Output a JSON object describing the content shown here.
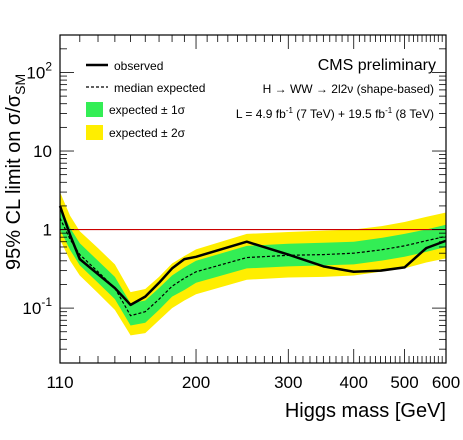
{
  "chart_data": {
    "type": "line",
    "xscale": "log",
    "yscale": "log",
    "xlim": [
      110,
      600
    ],
    "ylim": [
      0.02,
      300
    ],
    "ylabel": "95% CL limit on σ/σ",
    "ylabel_sub": "SM",
    "xlabel": "Higgs mass [GeV]",
    "x_ticklabels": [
      {
        "value": 110,
        "label": "110"
      },
      {
        "value": 200,
        "label": "200"
      },
      {
        "value": 300,
        "label": "300"
      },
      {
        "value": 400,
        "label": "400"
      },
      {
        "value": 500,
        "label": "500"
      },
      {
        "value": 600,
        "label": "600"
      }
    ],
    "y_ticklabels": [
      {
        "value": 0.1,
        "base": "10",
        "exp": "-1"
      },
      {
        "value": 1,
        "base": "1",
        "exp": ""
      },
      {
        "value": 10,
        "base": "10",
        "exp": ""
      },
      {
        "value": 100,
        "base": "10",
        "exp": "2"
      }
    ],
    "reference_line": {
      "y": 1,
      "color": "#cc0000"
    },
    "annotations": {
      "experiment": "CMS preliminary",
      "process": "H → WW → 2l2ν (shape-based)",
      "lumi": {
        "prefix": "L = 4.9 fb",
        "sup1": "-1",
        "middle": " (7 TeV) + 19.5 fb",
        "sup2": "-1",
        "suffix": " (8 TeV)"
      }
    },
    "legend": {
      "position": "top-left",
      "entries": [
        {
          "label": "observed",
          "style": "solid-line",
          "color": "#000000"
        },
        {
          "label": "median expected",
          "style": "dashed-line",
          "color": "#000000"
        },
        {
          "label": "expected ± 1σ",
          "style": "band",
          "color": "#33ee55"
        },
        {
          "label": "expected ± 2σ",
          "style": "band",
          "color": "#ffee00"
        }
      ]
    },
    "series": [
      {
        "name": "observed",
        "style": "solid",
        "color": "#000000",
        "x": [
          110,
          115,
          120,
          130,
          140,
          150,
          160,
          170,
          180,
          190,
          200,
          250,
          300,
          350,
          400,
          450,
          500,
          550,
          600
        ],
        "y": [
          2.0,
          0.85,
          0.42,
          0.27,
          0.18,
          0.11,
          0.14,
          0.21,
          0.32,
          0.42,
          0.45,
          0.7,
          0.48,
          0.34,
          0.29,
          0.3,
          0.33,
          0.58,
          0.72
        ]
      },
      {
        "name": "median expected",
        "style": "dashed",
        "color": "#000000",
        "x": [
          110,
          115,
          120,
          130,
          140,
          150,
          160,
          170,
          180,
          190,
          200,
          250,
          300,
          350,
          400,
          450,
          500,
          550,
          600
        ],
        "y": [
          1.4,
          0.75,
          0.48,
          0.29,
          0.18,
          0.08,
          0.09,
          0.13,
          0.19,
          0.24,
          0.29,
          0.44,
          0.47,
          0.48,
          0.5,
          0.55,
          0.62,
          0.72,
          0.82
        ]
      },
      {
        "name": "expected ± 1σ",
        "type": "band",
        "color": "#33ee55",
        "x": [
          110,
          115,
          120,
          130,
          140,
          150,
          160,
          170,
          180,
          190,
          200,
          250,
          300,
          350,
          400,
          450,
          500,
          550,
          600
        ],
        "low": [
          1.0,
          0.55,
          0.35,
          0.21,
          0.13,
          0.06,
          0.065,
          0.095,
          0.14,
          0.17,
          0.21,
          0.32,
          0.34,
          0.35,
          0.36,
          0.4,
          0.45,
          0.52,
          0.6
        ],
        "high": [
          2.0,
          1.05,
          0.67,
          0.4,
          0.25,
          0.115,
          0.125,
          0.18,
          0.26,
          0.33,
          0.4,
          0.62,
          0.66,
          0.68,
          0.7,
          0.78,
          0.88,
          1.0,
          1.15
        ]
      },
      {
        "name": "expected ± 2σ",
        "type": "band",
        "color": "#ffee00",
        "x": [
          110,
          115,
          120,
          130,
          140,
          150,
          160,
          170,
          180,
          190,
          200,
          250,
          300,
          350,
          400,
          450,
          500,
          550,
          600
        ],
        "low": [
          0.75,
          0.4,
          0.26,
          0.155,
          0.095,
          0.045,
          0.048,
          0.07,
          0.1,
          0.125,
          0.15,
          0.23,
          0.245,
          0.25,
          0.26,
          0.29,
          0.32,
          0.38,
          0.43
        ],
        "high": [
          3.0,
          1.5,
          0.95,
          0.58,
          0.36,
          0.16,
          0.175,
          0.25,
          0.37,
          0.46,
          0.56,
          0.88,
          0.93,
          0.97,
          1.0,
          1.1,
          1.25,
          1.45,
          1.65
        ]
      }
    ]
  }
}
